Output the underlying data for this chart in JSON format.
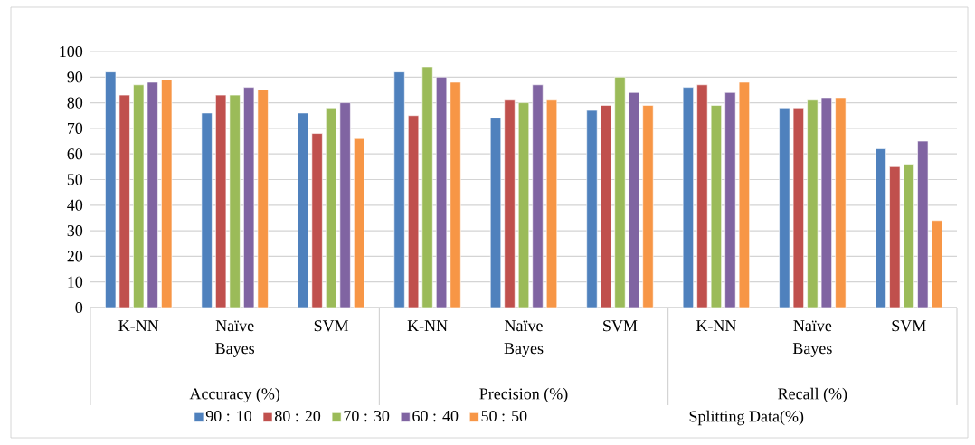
{
  "chart_data": {
    "type": "bar",
    "categories": [
      "K-NN",
      "Naïve Bayes",
      "SVM",
      "K-NN",
      "Naïve Bayes",
      "SVM",
      "K-NN",
      "Naïve Bayes",
      "SVM"
    ],
    "series": [
      {
        "name": "90 : 10",
        "color": "#4f81bd",
        "values": [
          92,
          76,
          76,
          92,
          74,
          77,
          86,
          78,
          62
        ]
      },
      {
        "name": "80 : 20",
        "color": "#c0504d",
        "values": [
          83,
          83,
          68,
          75,
          81,
          79,
          87,
          78,
          55
        ]
      },
      {
        "name": "70 : 30",
        "color": "#9bbb59",
        "values": [
          87,
          83,
          78,
          94,
          80,
          90,
          79,
          81,
          56
        ]
      },
      {
        "name": "60 : 40",
        "color": "#8064a2",
        "values": [
          88,
          86,
          80,
          90,
          87,
          84,
          84,
          82,
          65
        ]
      },
      {
        "name": "50 : 50",
        "color": "#f79646",
        "values": [
          89,
          85,
          66,
          88,
          81,
          79,
          88,
          82,
          34
        ]
      }
    ],
    "legend_title": "Splitting Data(%)",
    "annotations": [
      "Accuracy (%)",
      "Precision (%)",
      "Recall (%)"
    ],
    "ylim": [
      0,
      100
    ],
    "yticks": [
      0,
      10,
      20,
      30,
      40,
      50,
      60,
      70,
      80,
      90,
      100
    ],
    "grid": "y",
    "legend": "bottom"
  }
}
